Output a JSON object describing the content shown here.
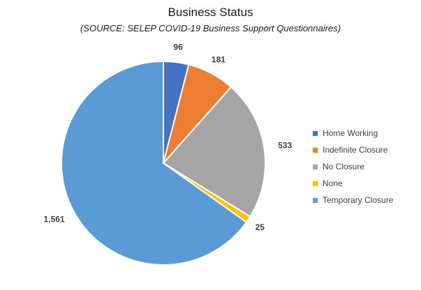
{
  "chart_data": {
    "type": "pie",
    "title": "Business Status",
    "subtitle": "(SOURCE: SELEP COVID-19 Business Support Questionnaires)",
    "legend_position": "right",
    "categories": [
      "Home Working",
      "Indefinite Closure",
      "No Closure",
      "None",
      "Temporary Closure"
    ],
    "values": [
      96,
      181,
      533,
      25,
      1561
    ],
    "data_labels": [
      "96",
      "181",
      "533",
      "25",
      "1,561"
    ],
    "colors": [
      "#4472C4",
      "#ED7D31",
      "#A5A5A5",
      "#FFC000",
      "#5B9BD5"
    ]
  }
}
